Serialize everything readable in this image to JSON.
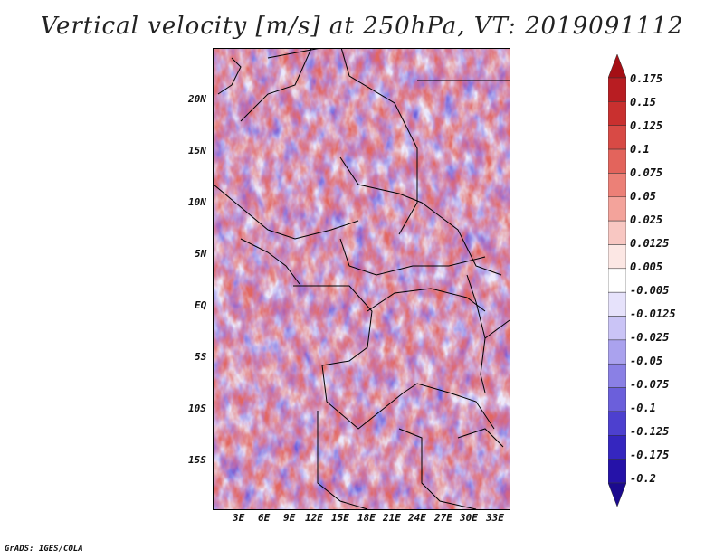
{
  "title": "Vertical velocity [m/s] at 250hPa, VT: 2019091112",
  "footer": "GrADS: IGES/COLA",
  "y_ticks": [
    "20N",
    "15N",
    "10N",
    "5N",
    "EQ",
    "5S",
    "10S",
    "15S"
  ],
  "x_ticks": [
    "3E",
    "6E",
    "9E",
    "12E",
    "15E",
    "18E",
    "21E",
    "24E",
    "27E",
    "30E",
    "33E"
  ],
  "colorbar": {
    "labels": [
      "0.175",
      "0.15",
      "0.125",
      "0.1",
      "0.075",
      "0.05",
      "0.025",
      "0.0125",
      "0.005",
      "-0.005",
      "-0.0125",
      "-0.025",
      "-0.05",
      "-0.075",
      "-0.1",
      "-0.125",
      "-0.175",
      "-0.2"
    ],
    "colors": [
      "#a50f15",
      "#b81d22",
      "#c9302f",
      "#d84a45",
      "#e3645c",
      "#ec8077",
      "#f3a39b",
      "#f8c7c2",
      "#fce7e4",
      "#ffffff",
      "#e6e2fb",
      "#cac4f6",
      "#aaa2ee",
      "#8a80e5",
      "#6b5fdb",
      "#4d40cf",
      "#3526bf",
      "#2512a8",
      "#1b0a8e"
    ]
  }
}
